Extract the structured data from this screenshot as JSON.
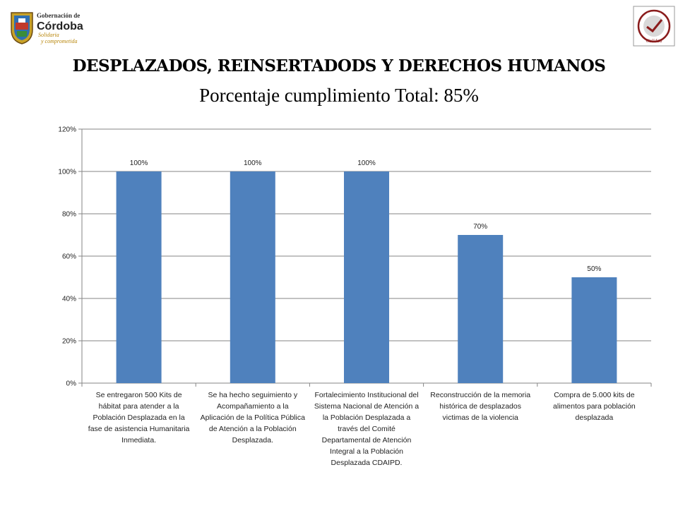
{
  "header": {
    "logo_left": {
      "line1": "Gobernación de",
      "line2": "Córdoba",
      "line3": "Solidaria",
      "line4": "y comprometida"
    },
    "logo_right": {
      "text": "Calidad"
    }
  },
  "title": "DESPLAZADOS, REINSERTADODS Y DERECHOS HUMANOS",
  "subtitle": "Porcentaje cumplimiento Total: 85%",
  "colors": {
    "bar": "#4F81BD",
    "grid": "#868686",
    "axis": "#868686"
  },
  "chart_data": {
    "type": "bar",
    "categories": [
      "Se entregaron 500 Kits de hábitat para atender a la Población Desplazada en la fase de asistencia Humanitaria Inmediata.",
      "Se ha hecho seguimiento y Acompañamiento a la Aplicación de la Política Pública de Atención a la Población Desplazada.",
      "Fortalecimiento Institucional del Sistema Nacional de Atención a la Población Desplazada a través del Comité Departamental de Atención Integral a la Población Desplazada CDAIPD.",
      "Reconstrucción de la memoria histórica de desplazados victimas de la violencia",
      "Compra de 5.000 kits de alimentos para población desplazada"
    ],
    "values": [
      100,
      100,
      100,
      70,
      50
    ],
    "data_labels": [
      "100%",
      "100%",
      "100%",
      "70%",
      "50%"
    ],
    "ylim": [
      0,
      120
    ],
    "yticks": [
      0,
      20,
      40,
      60,
      80,
      100,
      120
    ],
    "ytick_labels": [
      "0%",
      "20%",
      "40%",
      "60%",
      "80%",
      "100%",
      "120%"
    ],
    "grid": true,
    "legend": "none"
  }
}
